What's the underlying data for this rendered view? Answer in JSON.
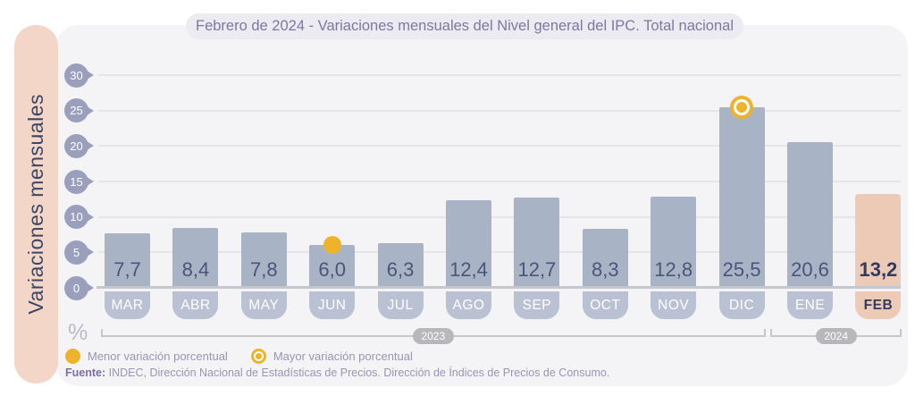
{
  "header": {
    "title": "Febrero de 2024 - Variaciones mensuales del Nivel general del IPC. Total nacional"
  },
  "chart_data": {
    "type": "bar",
    "title": "Febrero de 2024 - Variaciones mensuales del Nivel general del IPC. Total nacional",
    "ylabel": "Variaciones mensuales",
    "unit_label": "%",
    "categories": [
      "MAR",
      "ABR",
      "MAY",
      "JUN",
      "JUL",
      "AGO",
      "SEP",
      "OCT",
      "NOV",
      "DIC",
      "ENE",
      "FEB"
    ],
    "values": [
      7.7,
      8.4,
      7.8,
      6.0,
      6.3,
      12.4,
      12.7,
      8.3,
      12.8,
      25.5,
      20.6,
      13.2
    ],
    "value_labels": [
      "7,7",
      "8,4",
      "7,8",
      "6,0",
      "6,3",
      "12,4",
      "12,7",
      "8,3",
      "12,8",
      "25,5",
      "20,6",
      "13,2"
    ],
    "y_ticks": [
      30,
      25,
      20,
      15,
      10,
      5,
      0
    ],
    "ylim": [
      0,
      30
    ],
    "grid": true,
    "legend_position": "bottom-left",
    "highlight_category": "FEB",
    "min_marker": {
      "category": "JUN",
      "value": 6.0
    },
    "max_marker": {
      "category": "DIC",
      "value": 25.5
    },
    "year_groups": [
      {
        "label": "2023",
        "from": "MAR",
        "to": "DIC"
      },
      {
        "label": "2024",
        "from": "ENE",
        "to": "FEB"
      }
    ]
  },
  "legend": {
    "min_label": "Menor variación porcentual",
    "max_label": "Mayor variación porcentual"
  },
  "source": {
    "prefix": "Fuente:",
    "text": " INDEC, Dirección Nacional de Estadísticas de Precios. Dirección de Índices de Precios de Consumo."
  },
  "colors": {
    "bar": "#a9b3c6",
    "bar-highlight": "#eccab5",
    "month-pill": "#b9c1d2",
    "panel": "#f4f4f7",
    "sidebar": "#f3d6c8",
    "axis-pin": "#9aa0bb",
    "gridline": "#e4e5e9",
    "axis-line": "#c5c7ce",
    "value-text": "#4a5578",
    "value-text-highlight": "#303b60",
    "title-text": "#8176a2",
    "title-pill": "#ebebf1",
    "gold": "#ecb32b",
    "legend-text": "#9c93b4",
    "source-text": "#9c93b4",
    "source-prefix": "#7d6f9d",
    "bracket": "#c6c7cb",
    "year-pill": "#b7b7bc",
    "ylabel-text": "#3b4766",
    "percent-text": "#b8bcc8"
  }
}
